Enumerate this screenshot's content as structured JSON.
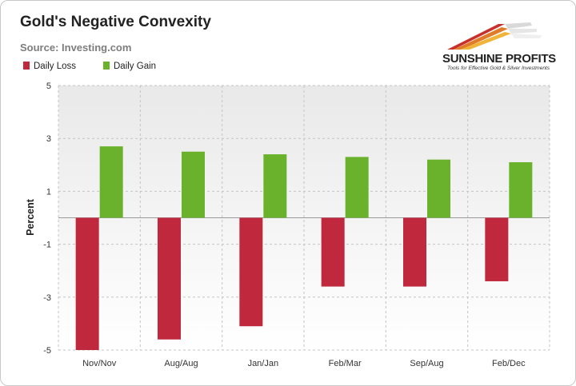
{
  "title": "Gold's Negative Convexity",
  "subtitle": "Source: Investing.com",
  "logo": {
    "name": "SUNSHINE PROFITS",
    "tagline": "Tools for Effective Gold & Silver Investments"
  },
  "colors": {
    "loss": "#c0283e",
    "gain": "#6ab22c"
  },
  "chart_data": {
    "type": "bar",
    "title": "Gold's Negative Convexity",
    "xlabel": "",
    "ylabel": "Percent",
    "ylim": [
      -5,
      5
    ],
    "yticks": [
      "5",
      "3",
      "1",
      "-1",
      "-3",
      "-5"
    ],
    "ytick_values": [
      5,
      3,
      1,
      -1,
      -3,
      -5
    ],
    "grid": true,
    "legend_position": "top-left",
    "categories": [
      "Nov/Nov",
      "Aug/Aug",
      "Jan/Jan",
      "Feb/Mar",
      "Sep/Aug",
      "Feb/Dec"
    ],
    "series": [
      {
        "name": "Daily Loss",
        "values": [
          -5.0,
          -4.6,
          -4.1,
          -2.6,
          -2.6,
          -2.4
        ]
      },
      {
        "name": "Daily Gain",
        "values": [
          2.7,
          2.5,
          2.4,
          2.3,
          2.2,
          2.1
        ]
      }
    ]
  }
}
